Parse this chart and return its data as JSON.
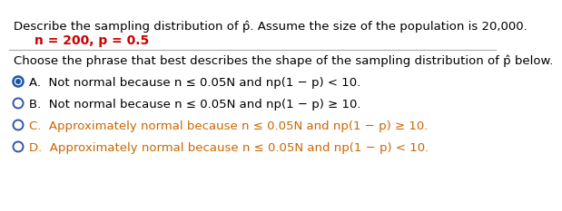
{
  "title_line": "Describe the sampling distribution of p̂. Assume the size of the population is 20,000.",
  "params_line": "n = 200, p = 0.5",
  "question_line": "Choose the phrase that best describes the shape of the sampling distribution of p̂ below.",
  "options": [
    "A.  Not normal because n ≤ 0.05N and np(1 − p) < 10.",
    "B.  Not normal because n ≤ 0.05N and np(1 − p) ≥ 10.",
    "C.  Approximately normal because n ≤ 0.05N and np(1 − p) ≥ 10.",
    "D.  Approximately normal because n ≤ 0.05N and np(1 − p) < 10."
  ],
  "option_colors": [
    "#000000",
    "#000000",
    "#cc6600",
    "#cc6600"
  ],
  "selected_option": 0,
  "bg_color": "#ffffff",
  "title_color": "#000000",
  "params_color": "#cc0000",
  "question_color": "#000000",
  "selected_radio_outer": "#1a55aa",
  "selected_radio_inner": "#1a55aa",
  "unselected_radio_color": "#3355aa",
  "divider_color": "#aaaaaa",
  "font_size_title": 9.5,
  "font_size_params": 10.0,
  "font_size_question": 9.5,
  "font_size_options": 9.5
}
